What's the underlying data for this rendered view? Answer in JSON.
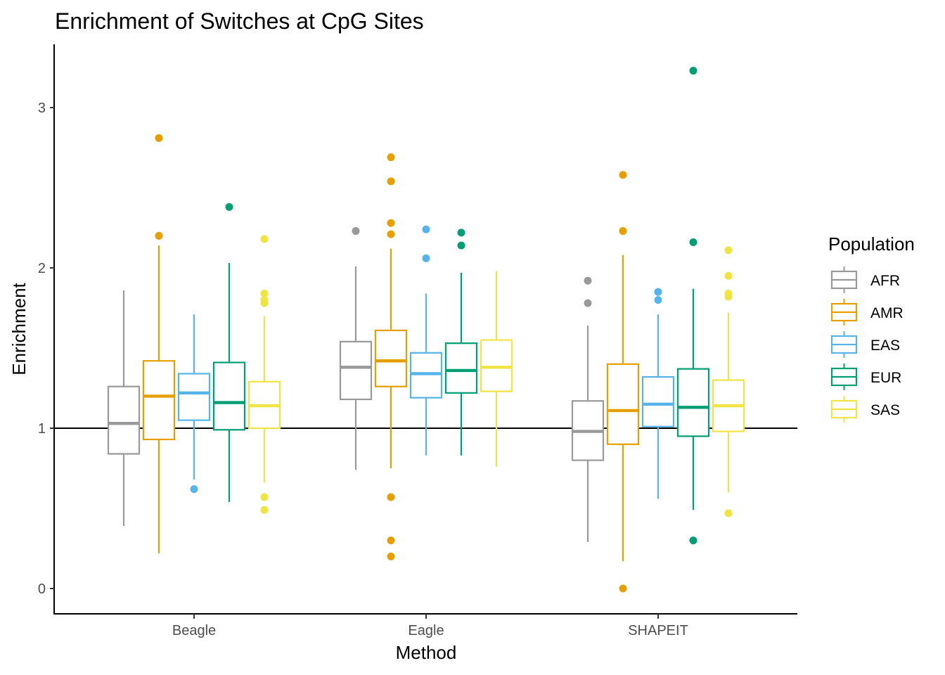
{
  "chart_data": {
    "type": "boxplot",
    "title": "Enrichment of Switches at CpG Sites",
    "xlabel": "Method",
    "ylabel": "Enrichment",
    "categories": [
      "Beagle",
      "Eagle",
      "SHAPEIT"
    ],
    "yticks": [
      "0",
      "1",
      "2",
      "3"
    ],
    "ytick_values": [
      0,
      1,
      2,
      3
    ],
    "ylim": [
      -0.16,
      3.38
    ],
    "reference_line": 1,
    "grid": false,
    "legend": {
      "title": "Population",
      "position": "right"
    },
    "series": [
      {
        "name": "AFR",
        "color": "#999999",
        "boxes": [
          {
            "category": "Beagle",
            "whisker_low": 0.39,
            "q1": 0.84,
            "median": 1.03,
            "q3": 1.26,
            "whisker_high": 1.86,
            "outliers": []
          },
          {
            "category": "Eagle",
            "whisker_low": 0.74,
            "q1": 1.18,
            "median": 1.38,
            "q3": 1.54,
            "whisker_high": 2.01,
            "outliers": [
              2.23
            ]
          },
          {
            "category": "SHAPEIT",
            "whisker_low": 0.29,
            "q1": 0.8,
            "median": 0.98,
            "q3": 1.17,
            "whisker_high": 1.64,
            "outliers": [
              1.78,
              1.92
            ]
          }
        ]
      },
      {
        "name": "AMR",
        "color": "#E69F00",
        "boxes": [
          {
            "category": "Beagle",
            "whisker_low": 0.22,
            "q1": 0.93,
            "median": 1.2,
            "q3": 1.42,
            "whisker_high": 2.14,
            "outliers": [
              2.2,
              2.81
            ]
          },
          {
            "category": "Eagle",
            "whisker_low": 0.75,
            "q1": 1.26,
            "median": 1.42,
            "q3": 1.61,
            "whisker_high": 2.12,
            "outliers": [
              0.2,
              0.3,
              0.57,
              2.21,
              2.28,
              2.54,
              2.69
            ]
          },
          {
            "category": "SHAPEIT",
            "whisker_low": 0.17,
            "q1": 0.9,
            "median": 1.11,
            "q3": 1.4,
            "whisker_high": 2.08,
            "outliers": [
              0.0,
              2.23,
              2.58
            ]
          }
        ]
      },
      {
        "name": "EAS",
        "color": "#56B4E9",
        "boxes": [
          {
            "category": "Beagle",
            "whisker_low": 0.68,
            "q1": 1.05,
            "median": 1.22,
            "q3": 1.34,
            "whisker_high": 1.71,
            "outliers": [
              0.62
            ]
          },
          {
            "category": "Eagle",
            "whisker_low": 0.83,
            "q1": 1.19,
            "median": 1.34,
            "q3": 1.47,
            "whisker_high": 1.84,
            "outliers": [
              2.06,
              2.24
            ]
          },
          {
            "category": "SHAPEIT",
            "whisker_low": 0.56,
            "q1": 1.01,
            "median": 1.15,
            "q3": 1.32,
            "whisker_high": 1.71,
            "outliers": [
              1.8,
              1.85
            ]
          }
        ]
      },
      {
        "name": "EUR",
        "color": "#009E73",
        "boxes": [
          {
            "category": "Beagle",
            "whisker_low": 0.54,
            "q1": 0.99,
            "median": 1.16,
            "q3": 1.41,
            "whisker_high": 2.03,
            "outliers": [
              2.38
            ]
          },
          {
            "category": "Eagle",
            "whisker_low": 0.83,
            "q1": 1.22,
            "median": 1.36,
            "q3": 1.53,
            "whisker_high": 1.97,
            "outliers": [
              2.14,
              2.22
            ]
          },
          {
            "category": "SHAPEIT",
            "whisker_low": 0.49,
            "q1": 0.95,
            "median": 1.13,
            "q3": 1.37,
            "whisker_high": 1.87,
            "outliers": [
              0.3,
              2.16,
              3.23
            ]
          }
        ]
      },
      {
        "name": "SAS",
        "color": "#F0E442",
        "boxes": [
          {
            "category": "Beagle",
            "whisker_low": 0.66,
            "q1": 1.0,
            "median": 1.14,
            "q3": 1.29,
            "whisker_high": 1.7,
            "outliers": [
              0.49,
              0.57,
              1.78,
              1.8,
              1.84,
              2.18
            ]
          },
          {
            "category": "Eagle",
            "whisker_low": 0.76,
            "q1": 1.23,
            "median": 1.38,
            "q3": 1.55,
            "whisker_high": 1.98,
            "outliers": []
          },
          {
            "category": "SHAPEIT",
            "whisker_low": 0.6,
            "q1": 0.98,
            "median": 1.14,
            "q3": 1.3,
            "whisker_high": 1.72,
            "outliers": [
              0.47,
              1.82,
              1.84,
              1.95,
              2.11
            ]
          }
        ]
      }
    ]
  }
}
